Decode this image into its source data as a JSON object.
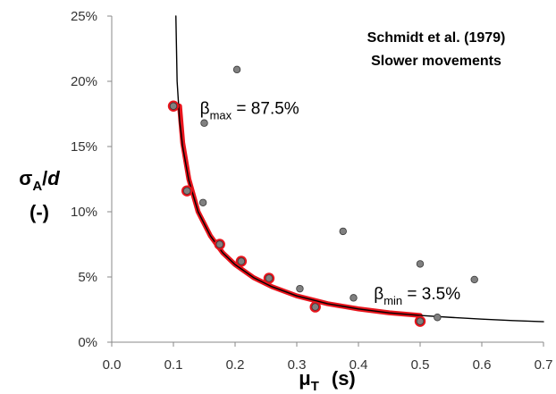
{
  "chart_data": {
    "type": "scatter",
    "title": "Schmidt et al. (1979)",
    "subtitle": "Slower movements",
    "xlabel": {
      "symbol": "μ",
      "sub": "T",
      "unit": "(s)"
    },
    "ylabel": {
      "symbol": "σ",
      "sub": "A",
      "rest": "/",
      "var": "d",
      "unit": "(-)"
    },
    "xlim": [
      0.0,
      0.7
    ],
    "ylim": [
      0,
      0.25
    ],
    "xticks": [
      {
        "v": 0.0,
        "label": "0.0"
      },
      {
        "v": 0.1,
        "label": "0.1"
      },
      {
        "v": 0.2,
        "label": "0.2"
      },
      {
        "v": 0.3,
        "label": "0.3"
      },
      {
        "v": 0.4,
        "label": "0.4"
      },
      {
        "v": 0.5,
        "label": "0.5"
      },
      {
        "v": 0.6,
        "label": "0.6"
      },
      {
        "v": 0.7,
        "label": "0.7"
      }
    ],
    "yticks": [
      {
        "v": 0.0,
        "label": "0%"
      },
      {
        "v": 0.05,
        "label": "5%"
      },
      {
        "v": 0.1,
        "label": "10%"
      },
      {
        "v": 0.15,
        "label": "15%"
      },
      {
        "v": 0.2,
        "label": "20%"
      },
      {
        "v": 0.25,
        "label": "25%"
      }
    ],
    "grid": false,
    "colors": {
      "points": "#808080",
      "highlight": "#e8141c",
      "fit": "#e8141c",
      "curve": "#000000"
    },
    "series": [
      {
        "kind": "points",
        "points": [
          {
            "x": 0.1,
            "y": 0.181,
            "highlight": true
          },
          {
            "x": 0.15,
            "y": 0.168,
            "highlight": false
          },
          {
            "x": 0.203,
            "y": 0.209,
            "highlight": false
          },
          {
            "x": 0.122,
            "y": 0.116,
            "highlight": true
          },
          {
            "x": 0.148,
            "y": 0.107,
            "highlight": false
          },
          {
            "x": 0.175,
            "y": 0.075,
            "highlight": true
          },
          {
            "x": 0.21,
            "y": 0.062,
            "highlight": true
          },
          {
            "x": 0.255,
            "y": 0.049,
            "highlight": true
          },
          {
            "x": 0.305,
            "y": 0.041,
            "highlight": false
          },
          {
            "x": 0.33,
            "y": 0.027,
            "highlight": true
          },
          {
            "x": 0.375,
            "y": 0.085,
            "highlight": false
          },
          {
            "x": 0.392,
            "y": 0.034,
            "highlight": false
          },
          {
            "x": 0.5,
            "y": 0.06,
            "highlight": false
          },
          {
            "x": 0.5,
            "y": 0.016,
            "highlight": true
          },
          {
            "x": 0.528,
            "y": 0.019,
            "highlight": false
          },
          {
            "x": 0.588,
            "y": 0.048,
            "highlight": false
          }
        ]
      },
      {
        "kind": "fit-line",
        "color": "#e8141c",
        "x": [
          0.1,
          0.11,
          0.115,
          0.125,
          0.14,
          0.16,
          0.18,
          0.2,
          0.23,
          0.26,
          0.3,
          0.35,
          0.4,
          0.45,
          0.5
        ],
        "y": [
          0.181,
          0.181,
          0.153,
          0.125,
          0.1,
          0.0815,
          0.0685,
          0.0595,
          0.0495,
          0.0425,
          0.0355,
          0.0295,
          0.0255,
          0.0225,
          0.0205
        ]
      },
      {
        "kind": "model-curve",
        "color": "#000000",
        "x": [
          0.104,
          0.106,
          0.11,
          0.115,
          0.125,
          0.14,
          0.16,
          0.18,
          0.2,
          0.23,
          0.26,
          0.3,
          0.35,
          0.4,
          0.45,
          0.5,
          0.55,
          0.6,
          0.65,
          0.7
        ],
        "y": [
          0.25,
          0.2,
          0.17,
          0.15,
          0.124,
          0.1,
          0.0815,
          0.0685,
          0.0595,
          0.0495,
          0.0425,
          0.0355,
          0.0295,
          0.0255,
          0.0225,
          0.0205,
          0.019,
          0.0177,
          0.0166,
          0.0157
        ]
      }
    ],
    "annotations": [
      {
        "id": "beta-max",
        "x": 0.143,
        "y": 0.175,
        "symbol": "β",
        "sub": "max",
        "text": " = 87.5%"
      },
      {
        "id": "beta-min",
        "x": 0.425,
        "y": 0.033,
        "symbol": "β",
        "sub": "min",
        "text": " = 3.5%"
      }
    ]
  }
}
